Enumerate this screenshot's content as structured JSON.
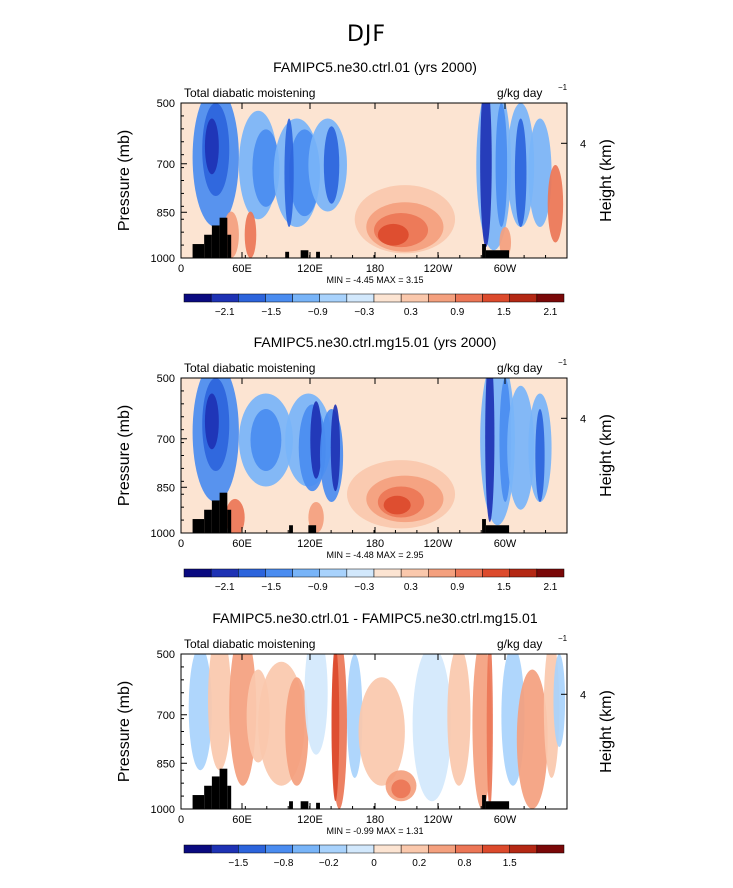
{
  "figure_title": "DJF",
  "chart_data": [
    {
      "type": "heatmap",
      "title": "FAMIPC5.ne30.ctrl.01 (yrs 2000)",
      "left_label": "Total diabatic moistening",
      "units": "g/kg day",
      "units_exp": "−1",
      "ylabel": "Pressure (mb)",
      "y2label": "Height (km)",
      "y_ticks": [
        "500",
        "700",
        "850",
        "1000"
      ],
      "y2_ticks": [
        "4"
      ],
      "x_ticks": [
        "0",
        "60E",
        "120E",
        "180",
        "120W",
        "60W"
      ],
      "stats": "MIN =   -4.45   MAX =    3.15",
      "colorbar_labels": [
        "−2.1",
        "−1.5",
        "−0.9",
        "−0.3",
        "0.3",
        "0.9",
        "1.5",
        "2.1"
      ],
      "colorbar_colors": [
        "#0a0a80",
        "#1e32b4",
        "#2c64dc",
        "#4a8cf0",
        "#78b4f8",
        "#a8d2fc",
        "#d2e8fc",
        "#fce4d2",
        "#fac8ac",
        "#f4a07e",
        "#ec7656",
        "#dc4a2c",
        "#b42814",
        "#7a0808"
      ]
    },
    {
      "type": "heatmap",
      "title": "FAMIPC5.ne30.ctrl.mg15.01 (yrs 2000)",
      "left_label": "Total diabatic moistening",
      "units": "g/kg day",
      "units_exp": "−1",
      "ylabel": "Pressure (mb)",
      "y2label": "Height (km)",
      "y_ticks": [
        "500",
        "700",
        "850",
        "1000"
      ],
      "y2_ticks": [
        "4"
      ],
      "x_ticks": [
        "0",
        "60E",
        "120E",
        "180",
        "120W",
        "60W"
      ],
      "stats": "MIN =   -4.48   MAX =    2.95",
      "colorbar_labels": [
        "−2.1",
        "−1.5",
        "−0.9",
        "−0.3",
        "0.3",
        "0.9",
        "1.5",
        "2.1"
      ],
      "colorbar_colors": [
        "#0a0a80",
        "#1e32b4",
        "#2c64dc",
        "#4a8cf0",
        "#78b4f8",
        "#a8d2fc",
        "#d2e8fc",
        "#fce4d2",
        "#fac8ac",
        "#f4a07e",
        "#ec7656",
        "#dc4a2c",
        "#b42814",
        "#7a0808"
      ]
    },
    {
      "type": "heatmap",
      "title": "FAMIPC5.ne30.ctrl.01 - FAMIPC5.ne30.ctrl.mg15.01",
      "left_label": "Total diabatic moistening",
      "units": "g/kg day",
      "units_exp": "−1",
      "ylabel": "Pressure (mb)",
      "y2label": "Height (km)",
      "y_ticks": [
        "500",
        "700",
        "850",
        "1000"
      ],
      "y2_ticks": [
        "4"
      ],
      "x_ticks": [
        "0",
        "60E",
        "120E",
        "180",
        "120W",
        "60W"
      ],
      "stats": "MIN =   -0.99   MAX =    1.31",
      "colorbar_labels": [
        "−1.5",
        "−0.8",
        "−0.2",
        "0",
        "0.2",
        "0.8",
        "1.5"
      ],
      "colorbar_colors": [
        "#0a0a80",
        "#1e32b4",
        "#2c64dc",
        "#4a8cf0",
        "#78b4f8",
        "#a8d2fc",
        "#d2e8fc",
        "#fce4d2",
        "#fac8ac",
        "#f4a07e",
        "#ec7656",
        "#dc4a2c",
        "#b42814",
        "#7a0808"
      ]
    }
  ]
}
